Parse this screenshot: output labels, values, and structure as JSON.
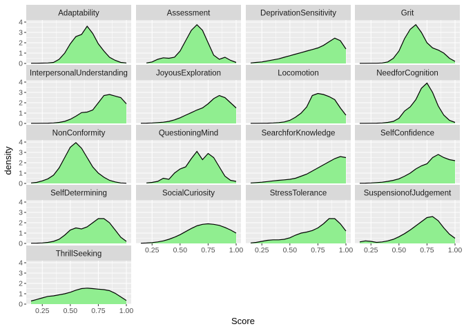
{
  "chart_data": {
    "type": "area",
    "kind": "faceted density plot",
    "xlabel": "Score",
    "ylabel": "density",
    "xlim": [
      0.15,
      1.0
    ],
    "ylim": [
      0,
      4.2
    ],
    "x_ticks": [
      "0.25",
      "0.50",
      "0.75",
      "1.00"
    ],
    "y_ticks": [
      "0",
      "1",
      "2",
      "3",
      "4"
    ],
    "grid": true,
    "legend": "none",
    "colors": {
      "fill": "#90EE90",
      "line": "#000000",
      "panel": "#EBEBEB",
      "strip": "#D9D9D9",
      "grid": "#FFFFFF"
    },
    "facets": [
      {
        "name": "Adaptability",
        "x": [
          0.15,
          0.2,
          0.25,
          0.3,
          0.35,
          0.4,
          0.45,
          0.5,
          0.55,
          0.6,
          0.65,
          0.7,
          0.75,
          0.8,
          0.85,
          0.9,
          0.95,
          1.0
        ],
        "y": [
          0.02,
          0.02,
          0.03,
          0.05,
          0.1,
          0.4,
          1.0,
          1.9,
          2.6,
          2.8,
          3.6,
          2.9,
          1.9,
          1.2,
          0.6,
          0.3,
          0.1,
          0.05
        ]
      },
      {
        "name": "Assessment",
        "x": [
          0.2,
          0.25,
          0.3,
          0.35,
          0.4,
          0.45,
          0.5,
          0.55,
          0.6,
          0.65,
          0.7,
          0.75,
          0.8,
          0.85,
          0.9,
          0.95,
          1.0
        ],
        "y": [
          0.05,
          0.15,
          0.4,
          0.55,
          0.5,
          0.6,
          1.2,
          2.2,
          3.2,
          3.75,
          3.2,
          2.0,
          0.8,
          0.4,
          0.6,
          0.3,
          0.1
        ]
      },
      {
        "name": "DeprivationSensitivity",
        "x": [
          0.15,
          0.2,
          0.25,
          0.3,
          0.35,
          0.4,
          0.45,
          0.5,
          0.55,
          0.6,
          0.65,
          0.7,
          0.75,
          0.8,
          0.85,
          0.9,
          0.95,
          1.0
        ],
        "y": [
          0.05,
          0.1,
          0.15,
          0.25,
          0.35,
          0.45,
          0.6,
          0.75,
          0.9,
          1.05,
          1.2,
          1.35,
          1.5,
          1.75,
          2.1,
          2.45,
          2.2,
          1.4
        ]
      },
      {
        "name": "Grit",
        "x": [
          0.15,
          0.2,
          0.25,
          0.3,
          0.35,
          0.4,
          0.45,
          0.5,
          0.55,
          0.6,
          0.65,
          0.7,
          0.75,
          0.8,
          0.85,
          0.9,
          0.95,
          1.0
        ],
        "y": [
          0.01,
          0.01,
          0.02,
          0.02,
          0.05,
          0.15,
          0.5,
          1.2,
          2.4,
          3.3,
          3.75,
          3.0,
          2.0,
          1.5,
          1.3,
          1.0,
          0.5,
          0.2
        ]
      },
      {
        "name": "InterpersonalUnderstanding",
        "x": [
          0.15,
          0.2,
          0.25,
          0.3,
          0.35,
          0.4,
          0.45,
          0.5,
          0.55,
          0.6,
          0.65,
          0.7,
          0.75,
          0.8,
          0.85,
          0.9,
          0.95,
          1.0
        ],
        "y": [
          0.01,
          0.01,
          0.02,
          0.03,
          0.05,
          0.1,
          0.2,
          0.4,
          0.7,
          1.05,
          1.1,
          1.3,
          2.0,
          2.7,
          2.8,
          2.65,
          2.5,
          1.9
        ]
      },
      {
        "name": "JoyousExploration",
        "x": [
          0.15,
          0.2,
          0.25,
          0.3,
          0.35,
          0.4,
          0.45,
          0.5,
          0.55,
          0.6,
          0.65,
          0.7,
          0.75,
          0.8,
          0.85,
          0.9,
          0.95,
          1.0
        ],
        "y": [
          0.02,
          0.03,
          0.05,
          0.08,
          0.12,
          0.2,
          0.35,
          0.55,
          0.8,
          1.05,
          1.3,
          1.5,
          1.9,
          2.4,
          2.7,
          2.5,
          2.0,
          1.5
        ]
      },
      {
        "name": "Locomotion",
        "x": [
          0.15,
          0.2,
          0.25,
          0.3,
          0.35,
          0.4,
          0.45,
          0.5,
          0.55,
          0.6,
          0.65,
          0.7,
          0.75,
          0.8,
          0.85,
          0.9,
          0.95,
          1.0
        ],
        "y": [
          0.01,
          0.01,
          0.02,
          0.03,
          0.05,
          0.08,
          0.15,
          0.3,
          0.6,
          1.0,
          1.6,
          2.7,
          2.9,
          2.8,
          2.6,
          2.3,
          1.5,
          0.8
        ]
      },
      {
        "name": "NeedforCognition",
        "x": [
          0.15,
          0.2,
          0.25,
          0.3,
          0.35,
          0.4,
          0.45,
          0.5,
          0.55,
          0.6,
          0.65,
          0.7,
          0.75,
          0.8,
          0.85,
          0.9,
          0.95,
          1.0
        ],
        "y": [
          0.01,
          0.01,
          0.02,
          0.03,
          0.05,
          0.1,
          0.2,
          0.5,
          1.2,
          1.6,
          2.3,
          3.4,
          3.9,
          3.0,
          1.7,
          0.8,
          0.3,
          0.1
        ]
      },
      {
        "name": "NonConformity",
        "x": [
          0.15,
          0.2,
          0.25,
          0.3,
          0.35,
          0.4,
          0.45,
          0.5,
          0.55,
          0.6,
          0.65,
          0.7,
          0.75,
          0.8,
          0.85,
          0.9,
          0.95,
          1.0
        ],
        "y": [
          0.05,
          0.1,
          0.25,
          0.45,
          0.8,
          1.5,
          2.5,
          3.5,
          3.95,
          3.4,
          2.5,
          1.6,
          1.0,
          0.6,
          0.3,
          0.15,
          0.05,
          0.02
        ]
      },
      {
        "name": "QuestioningMind",
        "x": [
          0.2,
          0.25,
          0.3,
          0.35,
          0.4,
          0.45,
          0.5,
          0.55,
          0.6,
          0.65,
          0.7,
          0.75,
          0.8,
          0.85,
          0.9,
          0.95,
          1.0
        ],
        "y": [
          0.05,
          0.1,
          0.2,
          0.5,
          0.4,
          1.0,
          1.4,
          1.6,
          2.4,
          3.1,
          2.3,
          2.9,
          2.5,
          1.6,
          0.7,
          0.3,
          0.2
        ]
      },
      {
        "name": "SearchforKnowledge",
        "x": [
          0.15,
          0.2,
          0.25,
          0.3,
          0.35,
          0.4,
          0.45,
          0.5,
          0.55,
          0.6,
          0.65,
          0.7,
          0.75,
          0.8,
          0.85,
          0.9,
          0.95,
          1.0
        ],
        "y": [
          0.05,
          0.08,
          0.12,
          0.18,
          0.25,
          0.3,
          0.35,
          0.4,
          0.5,
          0.7,
          0.9,
          1.2,
          1.5,
          1.8,
          2.1,
          2.4,
          2.6,
          2.5
        ]
      },
      {
        "name": "SelfConfidence",
        "x": [
          0.15,
          0.2,
          0.25,
          0.3,
          0.35,
          0.4,
          0.45,
          0.5,
          0.55,
          0.6,
          0.65,
          0.7,
          0.75,
          0.8,
          0.85,
          0.9,
          0.95,
          1.0
        ],
        "y": [
          0.02,
          0.03,
          0.05,
          0.08,
          0.12,
          0.2,
          0.3,
          0.45,
          0.7,
          1.0,
          1.4,
          1.7,
          1.9,
          2.5,
          2.8,
          2.5,
          2.3,
          2.2
        ]
      },
      {
        "name": "SelfDetermining",
        "x": [
          0.15,
          0.2,
          0.25,
          0.3,
          0.35,
          0.4,
          0.45,
          0.5,
          0.55,
          0.6,
          0.65,
          0.7,
          0.75,
          0.8,
          0.85,
          0.9,
          0.95,
          1.0
        ],
        "y": [
          0.02,
          0.03,
          0.05,
          0.1,
          0.2,
          0.4,
          0.8,
          1.3,
          1.5,
          1.4,
          1.6,
          2.0,
          2.4,
          2.4,
          2.0,
          1.3,
          0.6,
          0.2
        ]
      },
      {
        "name": "SocialCuriosity",
        "x": [
          0.15,
          0.2,
          0.25,
          0.3,
          0.35,
          0.4,
          0.45,
          0.5,
          0.55,
          0.6,
          0.65,
          0.7,
          0.75,
          0.8,
          0.85,
          0.9,
          0.95,
          1.0
        ],
        "y": [
          0.02,
          0.04,
          0.08,
          0.15,
          0.25,
          0.4,
          0.6,
          0.85,
          1.15,
          1.45,
          1.7,
          1.85,
          1.9,
          1.85,
          1.75,
          1.55,
          1.3,
          1.0
        ]
      },
      {
        "name": "StressTolerance",
        "x": [
          0.15,
          0.2,
          0.25,
          0.3,
          0.35,
          0.4,
          0.45,
          0.5,
          0.55,
          0.6,
          0.65,
          0.7,
          0.75,
          0.8,
          0.85,
          0.9,
          0.95,
          1.0
        ],
        "y": [
          0.05,
          0.1,
          0.2,
          0.3,
          0.35,
          0.35,
          0.4,
          0.55,
          0.8,
          1.0,
          1.1,
          1.25,
          1.5,
          1.9,
          2.4,
          2.4,
          1.9,
          1.2
        ]
      },
      {
        "name": "SuspensionofJudgement",
        "x": [
          0.15,
          0.2,
          0.25,
          0.3,
          0.35,
          0.4,
          0.45,
          0.5,
          0.55,
          0.6,
          0.65,
          0.7,
          0.75,
          0.8,
          0.85,
          0.9,
          0.95,
          1.0
        ],
        "y": [
          0.15,
          0.25,
          0.2,
          0.1,
          0.15,
          0.25,
          0.4,
          0.65,
          0.95,
          1.3,
          1.7,
          2.1,
          2.5,
          2.6,
          2.2,
          1.5,
          0.9,
          0.5
        ]
      },
      {
        "name": "ThrillSeeking",
        "x": [
          0.15,
          0.2,
          0.25,
          0.3,
          0.35,
          0.4,
          0.45,
          0.5,
          0.55,
          0.6,
          0.65,
          0.7,
          0.75,
          0.8,
          0.85,
          0.9,
          0.95,
          1.0
        ],
        "y": [
          0.3,
          0.45,
          0.6,
          0.75,
          0.8,
          0.9,
          1.0,
          1.15,
          1.35,
          1.5,
          1.55,
          1.5,
          1.45,
          1.4,
          1.3,
          1.05,
          0.7,
          0.35
        ]
      }
    ]
  }
}
